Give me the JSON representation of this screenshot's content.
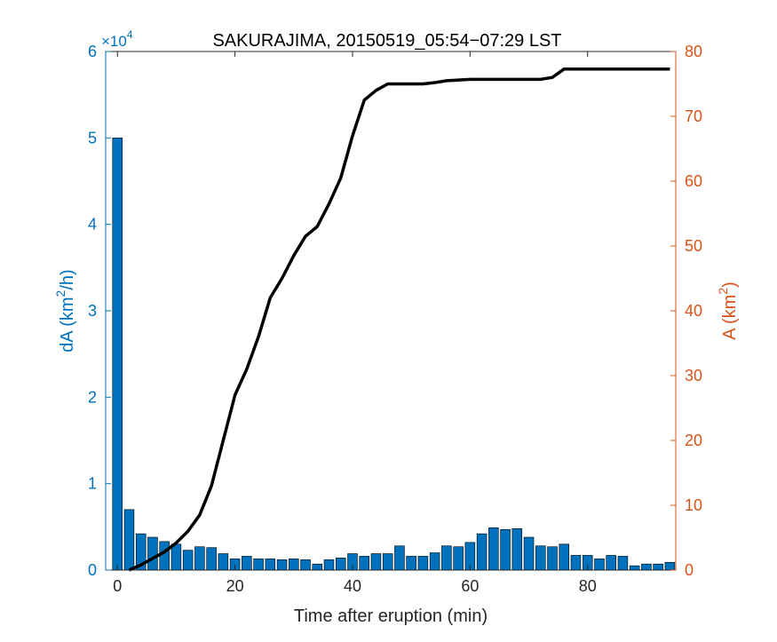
{
  "chart_data": {
    "type": "bar",
    "title": "SAKURAJIMA, 20150519_05:54−07:29 LST",
    "xlabel": "Time after eruption (min)",
    "ylabel_left": {
      "base": "dA (km",
      "sup": "2",
      "tail": "/h)"
    },
    "ylabel_right": {
      "base": "A (km",
      "sup": "2",
      "tail": ")"
    },
    "left_exponent": {
      "base": "×10",
      "sup": "4"
    },
    "xlim": [
      -2,
      95
    ],
    "ylim_left": [
      0,
      6
    ],
    "ylim_right": [
      0,
      80
    ],
    "xticks": [
      0,
      20,
      40,
      60,
      80
    ],
    "yticks_left": [
      0,
      1,
      2,
      3,
      4,
      5,
      6
    ],
    "yticks_right": [
      0,
      10,
      20,
      30,
      40,
      50,
      60,
      70,
      80
    ],
    "grid": false,
    "colors": {
      "bars": "#0072BD",
      "bar_edge": "#000000",
      "line": "#000000",
      "left_axis": "#0072BD",
      "right_axis": "#D95319",
      "box": "#262626"
    },
    "series": [
      {
        "type": "bar",
        "axis": "left",
        "bar_width_min": 1.65,
        "x": [
          0,
          2,
          4,
          6,
          8,
          10,
          12,
          14,
          16,
          18,
          20,
          22,
          24,
          26,
          28,
          30,
          32,
          34,
          36,
          38,
          40,
          42,
          44,
          46,
          48,
          50,
          52,
          54,
          56,
          58,
          60,
          62,
          64,
          66,
          68,
          70,
          72,
          74,
          76,
          78,
          80,
          82,
          84,
          86,
          88,
          90,
          92,
          94
        ],
        "values": [
          5.0,
          0.7,
          0.42,
          0.38,
          0.33,
          0.3,
          0.23,
          0.27,
          0.26,
          0.19,
          0.13,
          0.16,
          0.13,
          0.13,
          0.12,
          0.13,
          0.12,
          0.07,
          0.12,
          0.14,
          0.19,
          0.16,
          0.19,
          0.19,
          0.28,
          0.16,
          0.16,
          0.2,
          0.28,
          0.27,
          0.32,
          0.42,
          0.49,
          0.47,
          0.48,
          0.38,
          0.28,
          0.27,
          0.3,
          0.17,
          0.17,
          0.13,
          0.17,
          0.16,
          0.05,
          0.07,
          0.07,
          0.09
        ]
      },
      {
        "type": "line",
        "axis": "right",
        "x": [
          2,
          4,
          6,
          8,
          10,
          12,
          14,
          16,
          18,
          20,
          22,
          24,
          26,
          28,
          30,
          32,
          34,
          36,
          38,
          40,
          42,
          44,
          46,
          48,
          50,
          52,
          54,
          56,
          58,
          60,
          62,
          64,
          66,
          68,
          70,
          72,
          74,
          76,
          78,
          80,
          82,
          84,
          86,
          88,
          90,
          92,
          94
        ],
        "values": [
          0,
          0.8,
          1.8,
          2.8,
          4.2,
          6.0,
          8.5,
          13.0,
          20.0,
          27.0,
          31.0,
          36.0,
          42.0,
          45.0,
          48.5,
          51.5,
          53.0,
          56.5,
          60.5,
          67.0,
          72.5,
          74.0,
          75.0,
          75.0,
          75.0,
          75.0,
          75.2,
          75.5,
          75.6,
          75.7,
          75.7,
          75.7,
          75.7,
          75.7,
          75.7,
          75.7,
          76.0,
          77.3,
          77.3,
          77.3,
          77.3,
          77.3,
          77.3,
          77.3,
          77.3,
          77.3,
          77.3
        ]
      }
    ]
  }
}
